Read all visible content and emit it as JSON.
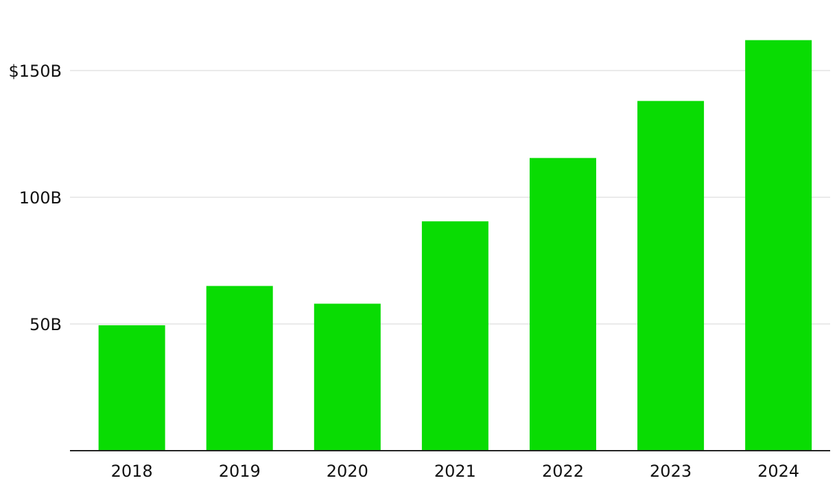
{
  "chart_data": {
    "type": "bar",
    "title": "",
    "xlabel": "",
    "ylabel": "",
    "categories": [
      "2018",
      "2019",
      "2020",
      "2021",
      "2022",
      "2023",
      "2024"
    ],
    "values": [
      49.5,
      65,
      58,
      90.5,
      115.5,
      138,
      162
    ],
    "ylim": [
      0,
      170
    ],
    "yticks": [
      {
        "value": 50,
        "label": "50B"
      },
      {
        "value": 100,
        "label": "100B"
      },
      {
        "value": 150,
        "label": "$150B"
      }
    ],
    "grid": true,
    "legend": "none",
    "colors": {
      "bar": "#09dc03",
      "grid": "#e3e3e3",
      "axis": "#222222",
      "text": "#111111"
    }
  }
}
